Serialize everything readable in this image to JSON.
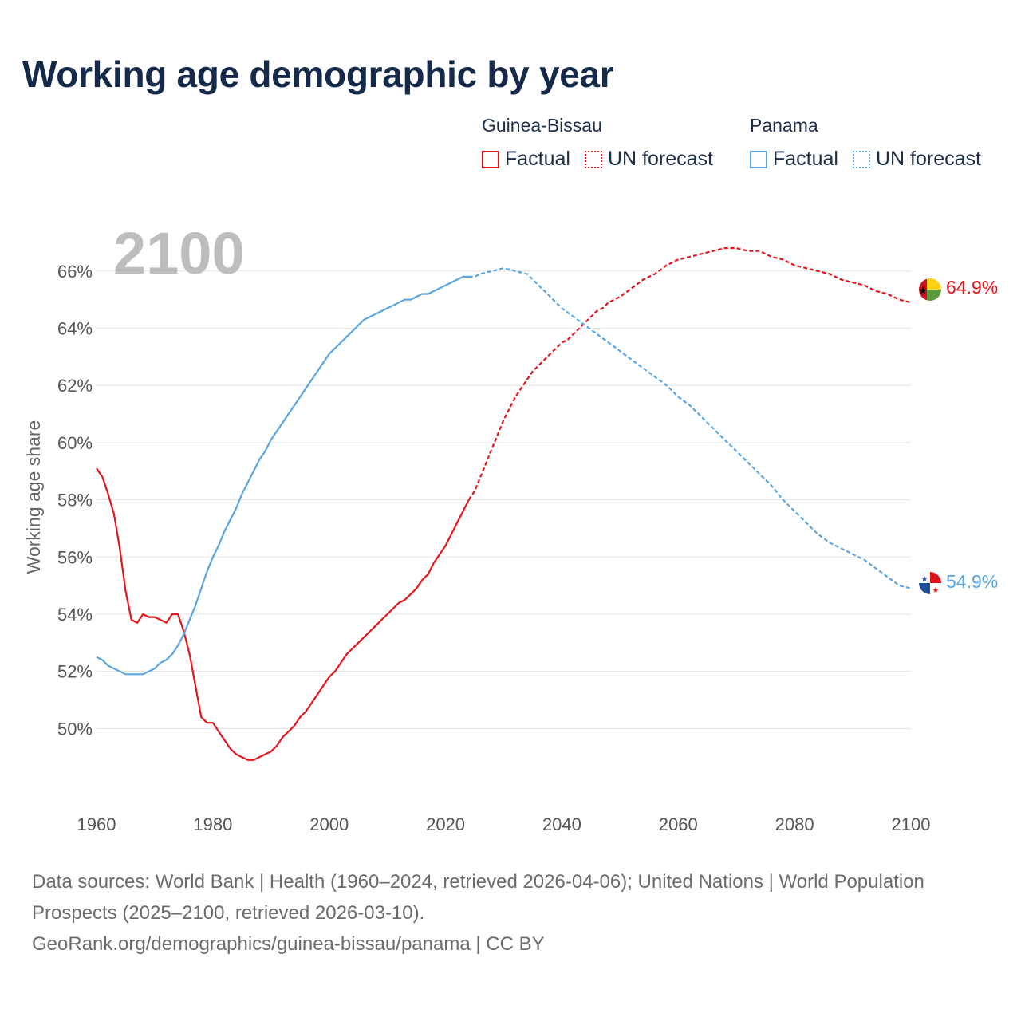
{
  "title": "Working age demographic by year",
  "legend": {
    "groups": [
      {
        "name": "Guinea-Bissau",
        "factual_label": "Factual",
        "forecast_label": "UN forecast",
        "color": "#e8141a"
      },
      {
        "name": "Panama",
        "factual_label": "Factual",
        "forecast_label": "UN forecast",
        "color": "#5aa5e3"
      }
    ]
  },
  "footer": {
    "sources": "Data sources: World Bank | Health (1960–2024, retrieved 2026-04-06); United Nations | World Population Prospects (2025–2100, retrieved 2026-03-10).",
    "credit": "GeoRank.org/demographics/guinea-bissau/panama | CC BY"
  },
  "chart_data": {
    "type": "line",
    "ylabel": "Working age share",
    "current_year_label": "2100",
    "xlim": [
      1960,
      2100
    ],
    "ylim": [
      47.5,
      67.5
    ],
    "x_ticks": [
      1960,
      1980,
      2000,
      2020,
      2040,
      2060,
      2080,
      2100
    ],
    "x_tick_labels": [
      "1960",
      "1980",
      "2000",
      "2020",
      "2040",
      "2060",
      "2080",
      "2100"
    ],
    "y_ticks": [
      50,
      52,
      54,
      56,
      58,
      60,
      62,
      64,
      66
    ],
    "y_tick_labels": [
      "50%",
      "52%",
      "54%",
      "56%",
      "58%",
      "60%",
      "62%",
      "64%",
      "66%"
    ],
    "grid": true,
    "series": [
      {
        "name": "Guinea-Bissau",
        "color": "#e8141a",
        "end_label": "64.9%",
        "factual": {
          "x": [
            1960,
            1961,
            1962,
            1963,
            1964,
            1965,
            1966,
            1967,
            1968,
            1969,
            1970,
            1971,
            1972,
            1973,
            1974,
            1975,
            1976,
            1977,
            1978,
            1979,
            1980,
            1981,
            1982,
            1983,
            1984,
            1985,
            1986,
            1987,
            1988,
            1989,
            1990,
            1991,
            1992,
            1993,
            1994,
            1995,
            1996,
            1997,
            1998,
            1999,
            2000,
            2001,
            2002,
            2003,
            2004,
            2005,
            2006,
            2007,
            2008,
            2009,
            2010,
            2011,
            2012,
            2013,
            2014,
            2015,
            2016,
            2017,
            2018,
            2019,
            2020,
            2021,
            2022,
            2023,
            2024
          ],
          "y": [
            59.1,
            58.8,
            58.2,
            57.5,
            56.3,
            54.8,
            53.8,
            53.7,
            54.0,
            53.9,
            53.9,
            53.8,
            53.7,
            54.0,
            54.0,
            53.4,
            52.6,
            51.5,
            50.4,
            50.2,
            50.2,
            49.9,
            49.6,
            49.3,
            49.1,
            49.0,
            48.9,
            48.9,
            49.0,
            49.1,
            49.2,
            49.4,
            49.7,
            49.9,
            50.1,
            50.4,
            50.6,
            50.9,
            51.2,
            51.5,
            51.8,
            52.0,
            52.3,
            52.6,
            52.8,
            53.0,
            53.2,
            53.4,
            53.6,
            53.8,
            54.0,
            54.2,
            54.4,
            54.5,
            54.7,
            54.9,
            55.2,
            55.4,
            55.8,
            56.1,
            56.4,
            56.8,
            57.2,
            57.6,
            58.0
          ]
        },
        "forecast": {
          "x": [
            2024,
            2025,
            2026,
            2027,
            2028,
            2029,
            2030,
            2031,
            2032,
            2033,
            2034,
            2035,
            2036,
            2037,
            2038,
            2039,
            2040,
            2041,
            2042,
            2043,
            2044,
            2045,
            2046,
            2047,
            2048,
            2049,
            2050,
            2052,
            2054,
            2056,
            2058,
            2060,
            2062,
            2064,
            2066,
            2068,
            2070,
            2072,
            2074,
            2076,
            2078,
            2080,
            2082,
            2084,
            2086,
            2088,
            2090,
            2092,
            2094,
            2096,
            2098,
            2100
          ],
          "y": [
            58.0,
            58.3,
            58.8,
            59.3,
            59.8,
            60.3,
            60.8,
            61.2,
            61.6,
            61.9,
            62.2,
            62.5,
            62.7,
            62.9,
            63.1,
            63.3,
            63.5,
            63.6,
            63.8,
            64.0,
            64.2,
            64.4,
            64.6,
            64.7,
            64.9,
            65.0,
            65.1,
            65.4,
            65.7,
            65.9,
            66.2,
            66.4,
            66.5,
            66.6,
            66.7,
            66.8,
            66.8,
            66.7,
            66.7,
            66.5,
            66.4,
            66.2,
            66.1,
            66.0,
            65.9,
            65.7,
            65.6,
            65.5,
            65.3,
            65.2,
            65.0,
            64.9
          ]
        }
      },
      {
        "name": "Panama",
        "color": "#5aa5e3",
        "end_label": "54.9%",
        "factual": {
          "x": [
            1960,
            1961,
            1962,
            1963,
            1964,
            1965,
            1966,
            1967,
            1968,
            1969,
            1970,
            1971,
            1972,
            1973,
            1974,
            1975,
            1976,
            1977,
            1978,
            1979,
            1980,
            1981,
            1982,
            1983,
            1984,
            1985,
            1986,
            1987,
            1988,
            1989,
            1990,
            1991,
            1992,
            1993,
            1994,
            1995,
            1996,
            1997,
            1998,
            1999,
            2000,
            2001,
            2002,
            2003,
            2004,
            2005,
            2006,
            2007,
            2008,
            2009,
            2010,
            2011,
            2012,
            2013,
            2014,
            2015,
            2016,
            2017,
            2018,
            2019,
            2020,
            2021,
            2022,
            2023,
            2024
          ],
          "y": [
            52.5,
            52.4,
            52.2,
            52.1,
            52.0,
            51.9,
            51.9,
            51.9,
            51.9,
            52.0,
            52.1,
            52.3,
            52.4,
            52.6,
            52.9,
            53.3,
            53.8,
            54.3,
            54.9,
            55.5,
            56.0,
            56.4,
            56.9,
            57.3,
            57.7,
            58.2,
            58.6,
            59.0,
            59.4,
            59.7,
            60.1,
            60.4,
            60.7,
            61.0,
            61.3,
            61.6,
            61.9,
            62.2,
            62.5,
            62.8,
            63.1,
            63.3,
            63.5,
            63.7,
            63.9,
            64.1,
            64.3,
            64.4,
            64.5,
            64.6,
            64.7,
            64.8,
            64.9,
            65.0,
            65.0,
            65.1,
            65.2,
            65.2,
            65.3,
            65.4,
            65.5,
            65.6,
            65.7,
            65.8,
            65.8
          ]
        },
        "forecast": {
          "x": [
            2024,
            2025,
            2026,
            2028,
            2030,
            2032,
            2034,
            2036,
            2038,
            2040,
            2042,
            2044,
            2046,
            2048,
            2050,
            2052,
            2054,
            2056,
            2058,
            2060,
            2062,
            2064,
            2066,
            2068,
            2070,
            2072,
            2074,
            2076,
            2078,
            2080,
            2082,
            2084,
            2086,
            2088,
            2090,
            2092,
            2094,
            2096,
            2098,
            2100
          ],
          "y": [
            65.8,
            65.8,
            65.9,
            66.0,
            66.1,
            66.0,
            65.9,
            65.5,
            65.1,
            64.7,
            64.4,
            64.1,
            63.8,
            63.5,
            63.2,
            62.9,
            62.6,
            62.3,
            62.0,
            61.6,
            61.3,
            60.9,
            60.5,
            60.1,
            59.7,
            59.3,
            58.9,
            58.5,
            58.0,
            57.6,
            57.2,
            56.8,
            56.5,
            56.3,
            56.1,
            55.9,
            55.6,
            55.3,
            55.0,
            54.9
          ]
        }
      }
    ]
  }
}
